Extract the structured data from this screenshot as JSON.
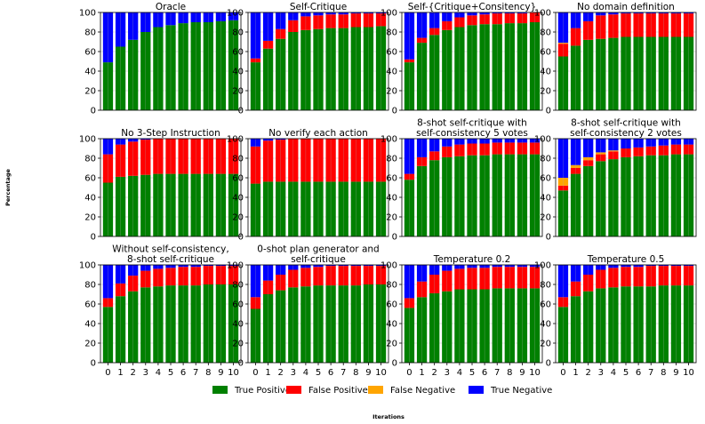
{
  "chart_data": {
    "type": "bar",
    "stacked": true,
    "normalized": true,
    "xlabel": "Iterations",
    "ylabel": "Percentage",
    "ylim": [
      0,
      100
    ],
    "yticks": [
      0,
      20,
      40,
      60,
      80,
      100
    ],
    "grid": true,
    "legend_position": "bottom-center",
    "categories": [
      "0",
      "1",
      "2",
      "3",
      "4",
      "5",
      "6",
      "7",
      "8",
      "9",
      "10"
    ],
    "series_order": [
      "True Positive",
      "False Positive",
      "False Negative",
      "True Negative"
    ],
    "colors": {
      "True Positive": "#008000",
      "False Positive": "#ff0000",
      "False Negative": "#ffa500",
      "True Negative": "#0000ff"
    },
    "legend": [
      "True Positive",
      "False Positive",
      "False Negative",
      "True Negative"
    ],
    "panels": [
      {
        "title": [
          "Oracle"
        ],
        "series": {
          "True Positive": [
            49,
            65,
            72,
            80,
            85,
            87,
            89,
            90,
            90,
            91,
            92
          ],
          "False Positive": [
            0,
            0,
            0,
            0,
            0,
            0,
            0,
            0,
            0,
            0,
            0
          ],
          "False Negative": [
            0,
            0,
            0,
            0,
            0,
            0,
            0,
            0,
            0,
            0,
            0
          ],
          "True Negative": [
            51,
            35,
            28,
            20,
            15,
            13,
            11,
            10,
            10,
            9,
            8
          ]
        }
      },
      {
        "title": [
          "Self-Critique"
        ],
        "series": {
          "True Positive": [
            49,
            63,
            73,
            80,
            82,
            83,
            84,
            84,
            85,
            85,
            86
          ],
          "False Positive": [
            4,
            8,
            10,
            12,
            14,
            14,
            14,
            14,
            14,
            14,
            13
          ],
          "False Negative": [
            0,
            0,
            0,
            0,
            0,
            0,
            0,
            0,
            0,
            0,
            0
          ],
          "True Negative": [
            47,
            29,
            17,
            8,
            4,
            3,
            2,
            2,
            1,
            1,
            1
          ]
        }
      },
      {
        "title": [
          "Self-{Critique+Consitency}"
        ],
        "series": {
          "True Positive": [
            49,
            69,
            77,
            82,
            85,
            87,
            88,
            88,
            89,
            89,
            90
          ],
          "False Positive": [
            3,
            5,
            7,
            9,
            10,
            10,
            10,
            11,
            10,
            10,
            10
          ],
          "False Negative": [
            0,
            0,
            0,
            0,
            0,
            0,
            0,
            0,
            0,
            0,
            0
          ],
          "True Negative": [
            48,
            26,
            16,
            9,
            5,
            3,
            2,
            1,
            1,
            1,
            0
          ]
        }
      },
      {
        "title": [
          "No domain definition"
        ],
        "series": {
          "True Positive": [
            55,
            66,
            72,
            73,
            74,
            75,
            75,
            75,
            75,
            75,
            75
          ],
          "False Positive": [
            13,
            18,
            19,
            24,
            24,
            24,
            24,
            24,
            24,
            24,
            24
          ],
          "False Negative": [
            1,
            0,
            0,
            0,
            0,
            0,
            0,
            0,
            0,
            0,
            0
          ],
          "True Negative": [
            31,
            16,
            9,
            3,
            2,
            1,
            1,
            1,
            1,
            1,
            1
          ]
        }
      },
      {
        "title": [
          "No 3-Step Instruction"
        ],
        "series": {
          "True Positive": [
            55,
            61,
            62,
            63,
            64,
            64,
            64,
            64,
            64,
            64,
            64
          ],
          "False Positive": [
            29,
            33,
            35,
            36,
            36,
            36,
            36,
            36,
            36,
            36,
            36
          ],
          "False Negative": [
            0,
            0,
            0,
            0,
            0,
            0,
            0,
            0,
            0,
            0,
            0
          ],
          "True Negative": [
            16,
            6,
            3,
            1,
            0,
            0,
            0,
            0,
            0,
            0,
            0
          ]
        }
      },
      {
        "title": [
          "No verify each action"
        ],
        "series": {
          "True Positive": [
            54,
            56,
            56,
            56,
            56,
            56,
            56,
            56,
            56,
            56,
            56
          ],
          "False Positive": [
            38,
            42,
            43,
            44,
            44,
            44,
            44,
            44,
            44,
            44,
            44
          ],
          "False Negative": [
            0,
            0,
            0,
            0,
            0,
            0,
            0,
            0,
            0,
            0,
            0
          ],
          "True Negative": [
            8,
            2,
            1,
            0,
            0,
            0,
            0,
            0,
            0,
            0,
            0
          ]
        }
      },
      {
        "title": [
          "8-shot self-critique with",
          "self-consistency 5 votes"
        ],
        "series": {
          "True Positive": [
            58,
            72,
            78,
            81,
            82,
            83,
            83,
            84,
            84,
            84,
            84
          ],
          "False Positive": [
            6,
            9,
            9,
            11,
            12,
            12,
            12,
            12,
            12,
            12,
            12
          ],
          "False Negative": [
            0,
            0,
            0,
            0,
            0,
            0,
            0,
            0,
            0,
            0,
            0
          ],
          "True Negative": [
            36,
            19,
            13,
            8,
            6,
            5,
            5,
            4,
            4,
            4,
            4
          ]
        }
      },
      {
        "title": [
          "8-shot self-critique with",
          "self-consistency 2 votes"
        ],
        "series": {
          "True Positive": [
            47,
            64,
            72,
            77,
            79,
            81,
            82,
            83,
            83,
            84,
            84
          ],
          "False Positive": [
            5,
            6,
            6,
            7,
            8,
            9,
            9,
            9,
            10,
            10,
            10
          ],
          "False Negative": [
            8,
            3,
            3,
            2,
            1,
            0,
            0,
            0,
            0,
            0,
            0
          ],
          "True Negative": [
            40,
            27,
            19,
            14,
            12,
            10,
            9,
            8,
            7,
            6,
            6
          ]
        }
      },
      {
        "title": [
          "Without self-consistency,",
          "8-shot self-critique"
        ],
        "series": {
          "True Positive": [
            57,
            68,
            73,
            77,
            78,
            79,
            79,
            79,
            80,
            80,
            80
          ],
          "False Positive": [
            9,
            13,
            16,
            17,
            18,
            18,
            19,
            19,
            19,
            19,
            19
          ],
          "False Negative": [
            0,
            0,
            0,
            0,
            0,
            0,
            0,
            0,
            0,
            0,
            0
          ],
          "True Negative": [
            34,
            19,
            11,
            6,
            4,
            3,
            2,
            2,
            1,
            1,
            1
          ]
        }
      },
      {
        "title": [
          "0-shot plan generator and",
          "self-critique"
        ],
        "series": {
          "True Positive": [
            55,
            70,
            74,
            77,
            78,
            79,
            79,
            79,
            79,
            80,
            80
          ],
          "False Positive": [
            12,
            14,
            16,
            18,
            19,
            19,
            20,
            20,
            20,
            19,
            19
          ],
          "False Negative": [
            0,
            0,
            0,
            0,
            0,
            0,
            0,
            0,
            0,
            0,
            0
          ],
          "True Negative": [
            33,
            16,
            10,
            5,
            3,
            2,
            1,
            1,
            1,
            1,
            1
          ]
        }
      },
      {
        "title": [
          "Temperature 0.2"
        ],
        "series": {
          "True Positive": [
            56,
            67,
            71,
            73,
            75,
            75,
            75,
            76,
            76,
            76,
            76
          ],
          "False Positive": [
            10,
            16,
            19,
            21,
            21,
            22,
            22,
            22,
            22,
            22,
            22
          ],
          "False Negative": [
            0,
            0,
            0,
            0,
            0,
            0,
            0,
            0,
            0,
            0,
            0
          ],
          "True Negative": [
            34,
            17,
            10,
            6,
            4,
            3,
            3,
            2,
            2,
            2,
            2
          ]
        }
      },
      {
        "title": [
          "Temperature 0.5"
        ],
        "series": {
          "True Positive": [
            57,
            68,
            73,
            76,
            77,
            78,
            78,
            78,
            79,
            79,
            79
          ],
          "False Positive": [
            10,
            15,
            17,
            19,
            20,
            20,
            20,
            21,
            20,
            20,
            20
          ],
          "False Negative": [
            0,
            0,
            0,
            0,
            0,
            0,
            0,
            0,
            0,
            0,
            0
          ],
          "True Negative": [
            33,
            17,
            10,
            5,
            3,
            2,
            2,
            1,
            1,
            1,
            1
          ]
        }
      }
    ]
  }
}
